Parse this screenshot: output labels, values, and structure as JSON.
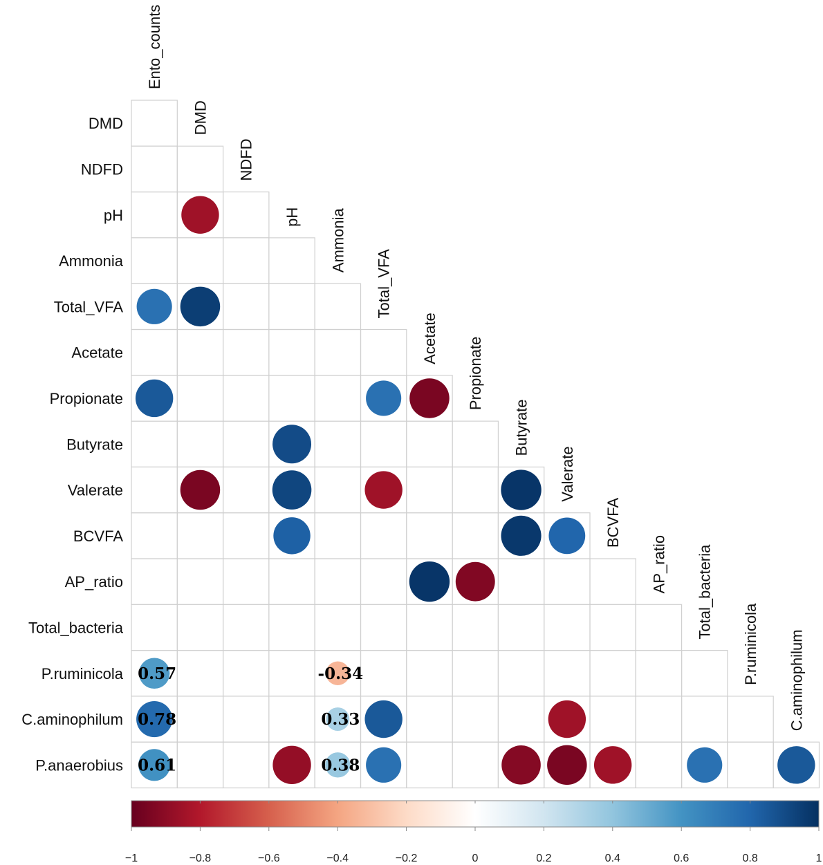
{
  "chart_data": {
    "type": "heatmap",
    "variables": [
      "Ento_counts",
      "DMD",
      "NDFD",
      "pH",
      "Ammonia",
      "Total_VFA",
      "Acetate",
      "Propionate",
      "Butyrate",
      "Valerate",
      "BCVFA",
      "AP_ratio",
      "Total_bacteria",
      "P.ruminicola",
      "C.aminophilum",
      "P.anaerobius"
    ],
    "row_labels": [
      "DMD",
      "NDFD",
      "pH",
      "Ammonia",
      "Total_VFA",
      "Acetate",
      "Propionate",
      "Butyrate",
      "Valerate",
      "BCVFA",
      "AP_ratio",
      "Total_bacteria",
      "P.ruminicola",
      "C.aminophilum",
      "P.anaerobius"
    ],
    "column_labels": [
      "Ento_counts",
      "DMD",
      "NDFD",
      "pH",
      "Ammonia",
      "Total_VFA",
      "Acetate",
      "Propionate",
      "Butyrate",
      "Valerate",
      "BCVFA",
      "AP_ratio",
      "Total_bacteria",
      "P.ruminicola",
      "C.aminophilum"
    ],
    "cells": [
      {
        "row": "pH",
        "col": "DMD",
        "value": -0.85
      },
      {
        "row": "Total_VFA",
        "col": "Ento_counts",
        "value": 0.75
      },
      {
        "row": "Total_VFA",
        "col": "DMD",
        "value": 0.95
      },
      {
        "row": "Propionate",
        "col": "Ento_counts",
        "value": 0.85
      },
      {
        "row": "Propionate",
        "col": "Total_VFA",
        "value": 0.75
      },
      {
        "row": "Propionate",
        "col": "Acetate",
        "value": -0.95
      },
      {
        "row": "Butyrate",
        "col": "pH",
        "value": 0.9
      },
      {
        "row": "Valerate",
        "col": "DMD",
        "value": -0.95
      },
      {
        "row": "Valerate",
        "col": "pH",
        "value": 0.92
      },
      {
        "row": "Valerate",
        "col": "Total_VFA",
        "value": -0.85
      },
      {
        "row": "Valerate",
        "col": "Butyrate",
        "value": 0.98
      },
      {
        "row": "BCVFA",
        "col": "pH",
        "value": 0.82
      },
      {
        "row": "BCVFA",
        "col": "Butyrate",
        "value": 0.97
      },
      {
        "row": "BCVFA",
        "col": "Valerate",
        "value": 0.8
      },
      {
        "row": "AP_ratio",
        "col": "Acetate",
        "value": 0.98
      },
      {
        "row": "AP_ratio",
        "col": "Propionate",
        "value": -0.93
      },
      {
        "row": "P.ruminicola",
        "col": "Ento_counts",
        "value": 0.57,
        "label": "0.57"
      },
      {
        "row": "P.ruminicola",
        "col": "Ammonia",
        "value": -0.34,
        "label": "-0.34"
      },
      {
        "row": "C.aminophilum",
        "col": "Ento_counts",
        "value": 0.78,
        "label": "0.78"
      },
      {
        "row": "C.aminophilum",
        "col": "Ammonia",
        "value": 0.33,
        "label": "0.33"
      },
      {
        "row": "C.aminophilum",
        "col": "Total_VFA",
        "value": 0.85
      },
      {
        "row": "C.aminophilum",
        "col": "Valerate",
        "value": -0.85
      },
      {
        "row": "P.anaerobius",
        "col": "Ento_counts",
        "value": 0.61,
        "label": "0.61"
      },
      {
        "row": "P.anaerobius",
        "col": "pH",
        "value": -0.88
      },
      {
        "row": "P.anaerobius",
        "col": "Ammonia",
        "value": 0.38,
        "label": "0.38"
      },
      {
        "row": "P.anaerobius",
        "col": "Total_VFA",
        "value": 0.75
      },
      {
        "row": "P.anaerobius",
        "col": "Butyrate",
        "value": -0.92
      },
      {
        "row": "P.anaerobius",
        "col": "Valerate",
        "value": -0.95
      },
      {
        "row": "P.anaerobius",
        "col": "BCVFA",
        "value": -0.85
      },
      {
        "row": "P.anaerobius",
        "col": "Total_bacteria",
        "value": 0.75
      },
      {
        "row": "P.anaerobius",
        "col": "C.aminophilum",
        "value": 0.85
      }
    ],
    "colorbar": {
      "range": [
        -1,
        1
      ],
      "ticks": [
        "−1",
        "−0.8",
        "−0.6",
        "−0.4",
        "−0.2",
        "0",
        "0.2",
        "0.4",
        "0.6",
        "0.8",
        "1"
      ],
      "colors": [
        "#67001f",
        "#b2182b",
        "#d6604d",
        "#f4a582",
        "#fddbc7",
        "#ffffff",
        "#d1e5f0",
        "#92c5de",
        "#4393c3",
        "#2166ac",
        "#053061"
      ]
    },
    "legend_position": "bottom"
  }
}
